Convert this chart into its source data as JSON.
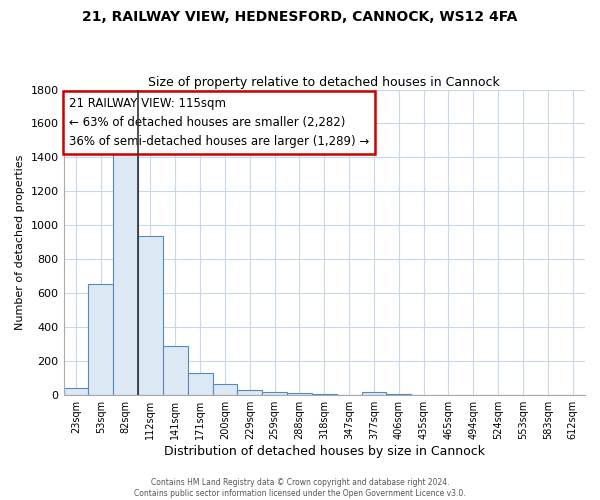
{
  "title_line1": "21, RAILWAY VIEW, HEDNESFORD, CANNOCK, WS12 4FA",
  "title_line2": "Size of property relative to detached houses in Cannock",
  "xlabel": "Distribution of detached houses by size in Cannock",
  "ylabel": "Number of detached properties",
  "annotation_line1": "21 RAILWAY VIEW: 115sqm",
  "annotation_line2": "← 63% of detached houses are smaller (2,282)",
  "annotation_line3": "36% of semi-detached houses are larger (1,289) →",
  "categories": [
    "23sqm",
    "53sqm",
    "82sqm",
    "112sqm",
    "141sqm",
    "171sqm",
    "200sqm",
    "229sqm",
    "259sqm",
    "288sqm",
    "318sqm",
    "347sqm",
    "377sqm",
    "406sqm",
    "435sqm",
    "465sqm",
    "494sqm",
    "524sqm",
    "553sqm",
    "583sqm",
    "612sqm"
  ],
  "values": [
    40,
    650,
    1470,
    935,
    290,
    130,
    65,
    25,
    15,
    10,
    5,
    0,
    15,
    5,
    0,
    0,
    0,
    0,
    0,
    0,
    0
  ],
  "bar_color": "#dce9f5",
  "bar_edge_color": "#5588bb",
  "property_line_color": "#333333",
  "ylim": [
    0,
    1800
  ],
  "yticks": [
    0,
    200,
    400,
    600,
    800,
    1000,
    1200,
    1400,
    1600,
    1800
  ],
  "annotation_box_color": "#ffffff",
  "annotation_box_edge_color": "#cc0000",
  "background_color": "#ffffff",
  "grid_color": "#c8d8e8",
  "footer_line1": "Contains HM Land Registry data © Crown copyright and database right 2024.",
  "footer_line2": "Contains public sector information licensed under the Open Government Licence v3.0."
}
